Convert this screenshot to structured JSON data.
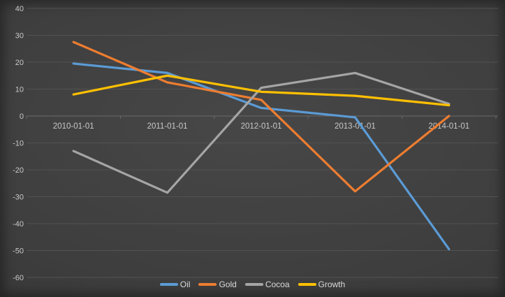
{
  "style": {
    "background_center": "#464646",
    "background_edge": "#242424",
    "gridline_color": "#525252",
    "axis_line_color": "#6a6a6a",
    "tick_text_color": "#c9c9c9",
    "legend_text_color": "#d9d9d9"
  },
  "chart_data": {
    "type": "line",
    "title": "",
    "xlabel": "",
    "ylabel": "",
    "categories": [
      "2010-01-01",
      "2011-01-01",
      "2012-01-01",
      "2013-01-01",
      "2014-01-01"
    ],
    "series": [
      {
        "name": "Oil",
        "color": "#5B9BD5",
        "values": [
          19.5,
          16,
          3,
          -0.5,
          -49.5
        ]
      },
      {
        "name": "Gold",
        "color": "#ED7D31",
        "values": [
          27.5,
          12.5,
          6,
          -28,
          0
        ]
      },
      {
        "name": "Cocoa",
        "color": "#A5A5A5",
        "values": [
          -13,
          -28.5,
          10.5,
          16,
          4.5
        ]
      },
      {
        "name": "Growth",
        "color": "#FFC000",
        "values": [
          8,
          15,
          9,
          7.5,
          4
        ]
      }
    ],
    "ylim": [
      -60,
      40
    ],
    "y_ticks": [
      40,
      30,
      20,
      10,
      0,
      -10,
      -20,
      -30,
      -40,
      -50,
      -60
    ],
    "grid": true,
    "legend_position": "bottom"
  }
}
